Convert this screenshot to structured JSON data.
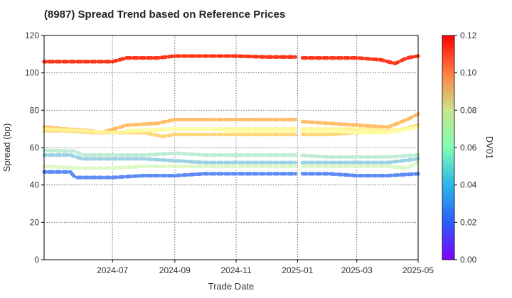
{
  "chart_data": {
    "type": "scatter",
    "title": "(8987)   Spread Trend based on Reference Prices",
    "xlabel": "Trade Date",
    "ylabel": "Spread (bp)",
    "colorbar_label": "DV01",
    "x_range": [
      "2024-04-24",
      "2025-05-01"
    ],
    "y_range": [
      0,
      120
    ],
    "x_ticks": [
      {
        "date": "2024-07-01",
        "label": "2024-07"
      },
      {
        "date": "2024-09-01",
        "label": "2024-09"
      },
      {
        "date": "2024-11-01",
        "label": "2024-11"
      },
      {
        "date": "2025-01-01",
        "label": "2025-01"
      },
      {
        "date": "2025-03-01",
        "label": "2025-03"
      },
      {
        "date": "2025-05-01",
        "label": "2025-05"
      }
    ],
    "y_ticks": [
      0,
      20,
      40,
      60,
      80,
      100,
      120
    ],
    "colorbar_range": [
      0,
      0.12
    ],
    "colorbar_ticks": [
      "0.00",
      "0.02",
      "0.04",
      "0.06",
      "0.08",
      "0.10",
      "0.12"
    ],
    "grid": true,
    "colormap": "rainbow",
    "series": [
      {
        "dv01": 0.112,
        "points": [
          [
            "2024-04-24",
            106
          ],
          [
            "2024-05-15",
            106
          ],
          [
            "2024-06-10",
            106
          ],
          [
            "2024-07-01",
            106
          ],
          [
            "2024-07-15",
            108
          ],
          [
            "2024-08-15",
            108
          ],
          [
            "2024-09-01",
            109
          ],
          [
            "2024-10-01",
            109
          ],
          [
            "2024-11-01",
            109
          ],
          [
            "2024-12-01",
            108.5
          ],
          [
            "2024-12-30",
            108.5
          ],
          [
            "2025-01-02",
            108
          ],
          [
            "2025-02-01",
            108
          ],
          [
            "2025-03-01",
            108
          ],
          [
            "2025-03-25",
            107
          ],
          [
            "2025-04-08",
            105
          ],
          [
            "2025-04-20",
            108
          ],
          [
            "2025-05-01",
            109
          ]
        ]
      },
      {
        "dv01": 0.088,
        "points": [
          [
            "2024-04-24",
            71
          ],
          [
            "2024-05-15",
            70
          ],
          [
            "2024-06-10",
            69
          ],
          [
            "2024-06-20",
            68
          ],
          [
            "2024-07-15",
            72
          ],
          [
            "2024-08-15",
            73
          ],
          [
            "2024-09-01",
            75
          ],
          [
            "2024-10-01",
            75
          ],
          [
            "2024-11-01",
            75
          ],
          [
            "2024-12-01",
            75
          ],
          [
            "2024-12-30",
            75
          ],
          [
            "2025-01-02",
            74
          ],
          [
            "2025-02-01",
            73
          ],
          [
            "2025-03-01",
            72
          ],
          [
            "2025-04-01",
            71
          ],
          [
            "2025-04-20",
            75
          ],
          [
            "2025-05-01",
            78
          ]
        ]
      },
      {
        "dv01": 0.082,
        "points": [
          [
            "2024-04-24",
            69
          ],
          [
            "2024-05-15",
            69
          ],
          [
            "2024-06-10",
            68
          ],
          [
            "2024-07-01",
            68
          ],
          [
            "2024-08-01",
            68
          ],
          [
            "2024-08-20",
            66
          ],
          [
            "2024-09-01",
            67
          ],
          [
            "2024-10-01",
            67
          ],
          [
            "2024-11-01",
            67
          ],
          [
            "2024-12-01",
            67
          ],
          [
            "2024-12-30",
            67
          ],
          [
            "2025-01-02",
            67
          ],
          [
            "2025-02-01",
            67
          ],
          [
            "2025-03-01",
            68
          ],
          [
            "2025-04-01",
            68
          ],
          [
            "2025-05-01",
            72
          ]
        ]
      },
      {
        "dv01": 0.072,
        "points": [
          [
            "2024-04-24",
            70
          ],
          [
            "2024-06-01",
            69
          ],
          [
            "2024-07-01",
            68
          ],
          [
            "2024-08-01",
            69
          ],
          [
            "2024-09-01",
            70
          ],
          [
            "2024-10-01",
            70
          ],
          [
            "2024-11-01",
            70
          ],
          [
            "2024-12-01",
            70
          ],
          [
            "2025-01-01",
            70
          ],
          [
            "2025-02-01",
            70
          ],
          [
            "2025-03-01",
            70
          ],
          [
            "2025-04-01",
            69
          ],
          [
            "2025-05-01",
            71
          ]
        ]
      },
      {
        "dv01": 0.066,
        "points": [
          [
            "2024-07-15",
            69
          ],
          [
            "2024-09-01",
            70
          ],
          [
            "2024-10-01",
            70
          ],
          [
            "2024-11-01",
            69
          ],
          [
            "2024-12-01",
            69
          ],
          [
            "2025-01-01",
            69
          ],
          [
            "2025-02-01",
            69
          ],
          [
            "2025-03-01",
            68
          ],
          [
            "2025-04-01",
            68
          ],
          [
            "2025-05-01",
            71
          ]
        ]
      },
      {
        "dv01": 0.052,
        "points": [
          [
            "2024-04-24",
            50
          ],
          [
            "2024-06-01",
            49
          ],
          [
            "2024-07-01",
            49
          ],
          [
            "2024-08-01",
            50
          ],
          [
            "2024-09-01",
            50
          ],
          [
            "2024-10-01",
            50
          ],
          [
            "2024-11-01",
            50
          ],
          [
            "2024-12-01",
            50
          ],
          [
            "2025-01-01",
            50
          ],
          [
            "2025-02-01",
            50
          ],
          [
            "2025-03-01",
            50
          ],
          [
            "2025-04-01",
            50
          ],
          [
            "2025-04-20",
            49
          ],
          [
            "2025-05-01",
            52
          ]
        ]
      },
      {
        "dv01": 0.045,
        "points": [
          [
            "2024-04-24",
            58.5
          ],
          [
            "2024-05-25",
            58
          ],
          [
            "2024-06-01",
            56
          ],
          [
            "2024-07-01",
            56
          ],
          [
            "2024-08-01",
            56
          ],
          [
            "2024-09-01",
            57
          ],
          [
            "2024-10-01",
            56
          ],
          [
            "2024-11-01",
            56
          ],
          [
            "2024-12-01",
            56
          ],
          [
            "2025-01-01",
            56
          ],
          [
            "2025-02-01",
            55
          ],
          [
            "2025-03-01",
            55
          ],
          [
            "2025-04-01",
            55
          ],
          [
            "2025-05-01",
            56
          ]
        ]
      },
      {
        "dv01": 0.037,
        "points": [
          [
            "2024-04-24",
            56
          ],
          [
            "2024-05-20",
            56
          ],
          [
            "2024-06-01",
            54
          ],
          [
            "2024-07-01",
            54
          ],
          [
            "2024-08-01",
            54
          ],
          [
            "2024-09-01",
            53
          ],
          [
            "2024-10-01",
            52
          ],
          [
            "2024-11-01",
            52
          ],
          [
            "2024-12-01",
            52
          ],
          [
            "2025-01-01",
            52
          ],
          [
            "2025-02-01",
            52
          ],
          [
            "2025-03-01",
            52
          ],
          [
            "2025-04-01",
            52
          ],
          [
            "2025-05-01",
            54
          ]
        ]
      },
      {
        "dv01": 0.022,
        "points": [
          [
            "2024-04-24",
            47
          ],
          [
            "2024-05-20",
            47
          ],
          [
            "2024-05-25",
            44
          ],
          [
            "2024-07-01",
            44
          ],
          [
            "2024-08-01",
            45
          ],
          [
            "2024-09-01",
            45
          ],
          [
            "2024-10-01",
            46
          ],
          [
            "2024-11-01",
            46
          ],
          [
            "2024-12-01",
            46
          ],
          [
            "2025-01-01",
            46
          ],
          [
            "2025-02-01",
            46
          ],
          [
            "2025-03-01",
            45
          ],
          [
            "2025-04-01",
            45
          ],
          [
            "2025-05-01",
            46
          ]
        ]
      }
    ]
  }
}
